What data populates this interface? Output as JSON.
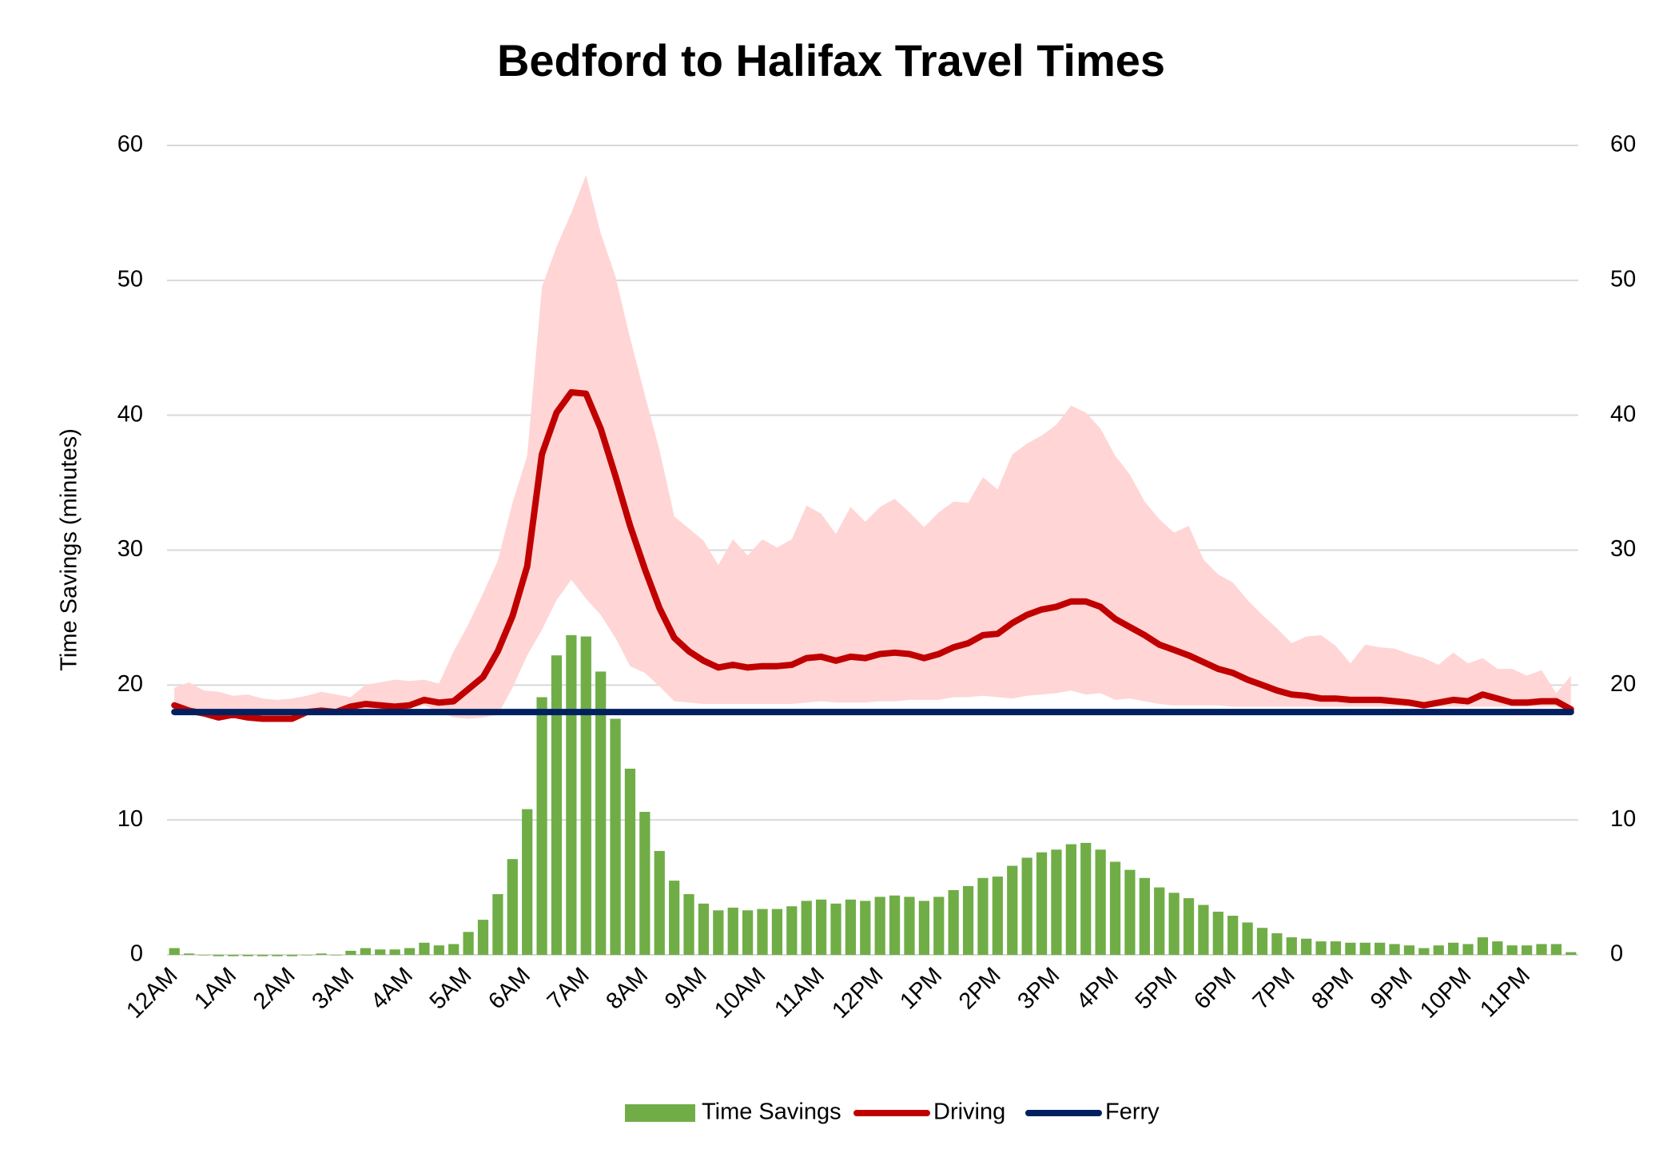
{
  "chart_data": {
    "type": "combo",
    "title": "Bedford to Halifax Travel Times",
    "y_label": "Time Savings (minutes)",
    "categories": [
      "12AM",
      null,
      null,
      null,
      "1AM",
      null,
      null,
      null,
      "2AM",
      null,
      null,
      null,
      "3AM",
      null,
      null,
      null,
      "4AM",
      null,
      null,
      null,
      "5AM",
      null,
      null,
      null,
      "6AM",
      null,
      null,
      null,
      "7AM",
      null,
      null,
      null,
      "8AM",
      null,
      null,
      null,
      "9AM",
      null,
      null,
      null,
      "10AM",
      null,
      null,
      null,
      "11AM",
      null,
      null,
      null,
      "12PM",
      null,
      null,
      null,
      "1PM",
      null,
      null,
      null,
      "2PM",
      null,
      null,
      null,
      "3PM",
      null,
      null,
      null,
      "4PM",
      null,
      null,
      null,
      "5PM",
      null,
      null,
      null,
      "6PM",
      null,
      null,
      null,
      "7PM",
      null,
      null,
      null,
      "8PM",
      null,
      null,
      null,
      "9PM",
      null,
      null,
      null,
      "10PM",
      null,
      null,
      null,
      "11PM",
      null,
      null,
      null
    ],
    "series": [
      {
        "name": "Time Savings",
        "type": "bar",
        "color": "#70ad47",
        "values": [
          0.5,
          0.1,
          0,
          -0.1,
          -0.1,
          -0.1,
          -0.1,
          -0.1,
          -0.1,
          0,
          0.1,
          0,
          0.3,
          0.5,
          0.4,
          0.4,
          0.5,
          0.9,
          0.7,
          0.8,
          1.7,
          2.6,
          4.5,
          7.1,
          10.8,
          19.1,
          22.2,
          23.7,
          23.6,
          21.0,
          17.5,
          13.8,
          10.6,
          7.7,
          5.5,
          4.5,
          3.8,
          3.3,
          3.5,
          3.3,
          3.4,
          3.4,
          3.6,
          4.0,
          4.1,
          3.8,
          4.1,
          4.0,
          4.3,
          4.4,
          4.3,
          4.0,
          4.3,
          4.8,
          5.1,
          5.7,
          5.8,
          6.6,
          7.2,
          7.6,
          7.8,
          8.2,
          8.3,
          7.8,
          6.9,
          6.3,
          5.7,
          5.0,
          4.6,
          4.2,
          3.7,
          3.2,
          2.9,
          2.4,
          2.0,
          1.6,
          1.3,
          1.2,
          1.0,
          1.0,
          0.9,
          0.9,
          0.9,
          0.8,
          0.7,
          0.5,
          0.7,
          0.9,
          0.8,
          1.3,
          1.0,
          0.7,
          0.7,
          0.8,
          0.8,
          0.2
        ]
      },
      {
        "name": "Driving",
        "type": "line",
        "color": "#c00000",
        "values": [
          18.5,
          18.1,
          17.9,
          17.6,
          17.8,
          17.6,
          17.5,
          17.5,
          17.5,
          18.0,
          18.1,
          18.0,
          18.4,
          18.6,
          18.5,
          18.4,
          18.5,
          18.9,
          18.7,
          18.8,
          19.7,
          20.6,
          22.5,
          25.1,
          28.8,
          37.1,
          40.2,
          41.7,
          41.6,
          39.0,
          35.5,
          31.8,
          28.6,
          25.7,
          23.5,
          22.5,
          21.8,
          21.3,
          21.5,
          21.3,
          21.4,
          21.4,
          21.5,
          22.0,
          22.1,
          21.8,
          22.1,
          22.0,
          22.3,
          22.4,
          22.3,
          22.0,
          22.3,
          22.8,
          23.1,
          23.7,
          23.8,
          24.6,
          25.2,
          25.6,
          25.8,
          26.2,
          26.2,
          25.8,
          24.9,
          24.3,
          23.7,
          23.0,
          22.6,
          22.2,
          21.7,
          21.2,
          20.9,
          20.4,
          20.0,
          19.6,
          19.3,
          19.2,
          19.0,
          19.0,
          18.9,
          18.9,
          18.9,
          18.8,
          18.7,
          18.5,
          18.7,
          18.9,
          18.8,
          19.3,
          19.0,
          18.7,
          18.7,
          18.8,
          18.8,
          18.2
        ]
      },
      {
        "name": "Ferry",
        "type": "line",
        "color": "#002060",
        "values": [
          18,
          18,
          18,
          18,
          18,
          18,
          18,
          18,
          18,
          18,
          18,
          18,
          18,
          18,
          18,
          18,
          18,
          18,
          18,
          18,
          18,
          18,
          18,
          18,
          18,
          18,
          18,
          18,
          18,
          18,
          18,
          18,
          18,
          18,
          18,
          18,
          18,
          18,
          18,
          18,
          18,
          18,
          18,
          18,
          18,
          18,
          18,
          18,
          18,
          18,
          18,
          18,
          18,
          18,
          18,
          18,
          18,
          18,
          18,
          18,
          18,
          18,
          18,
          18,
          18,
          18,
          18,
          18,
          18,
          18,
          18,
          18,
          18,
          18,
          18,
          18,
          18,
          18,
          18,
          18,
          18,
          18,
          18,
          18,
          18,
          18,
          18,
          18,
          18,
          18,
          18,
          18,
          18,
          18,
          18,
          18
        ]
      }
    ],
    "band": {
      "color": "#ffd5d5",
      "upper": [
        19.8,
        20.2,
        19.6,
        19.5,
        19.2,
        19.3,
        19.0,
        18.9,
        19.0,
        19.2,
        19.5,
        19.3,
        19.1,
        20.0,
        20.2,
        20.4,
        20.3,
        20.4,
        20.1,
        22.5,
        24.5,
        26.8,
        29.2,
        33.5,
        37.0,
        49.5,
        52.5,
        55.0,
        57.8,
        53.5,
        50.3,
        45.7,
        41.5,
        37.4,
        32.5,
        31.6,
        30.7,
        28.9,
        30.8,
        29.6,
        30.8,
        30.2,
        30.8,
        33.3,
        32.7,
        31.2,
        33.2,
        32.1,
        33.2,
        33.8,
        32.8,
        31.7,
        32.8,
        33.6,
        33.5,
        35.4,
        34.5,
        37.1,
        37.9,
        38.5,
        39.3,
        40.7,
        40.2,
        39.0,
        37.0,
        35.6,
        33.6,
        32.3,
        31.3,
        31.8,
        29.3,
        28.2,
        27.6,
        26.3,
        25.2,
        24.2,
        23.1,
        23.6,
        23.7,
        22.9,
        21.6,
        23.0,
        22.8,
        22.7,
        22.3,
        22.0,
        21.5,
        22.4,
        21.6,
        22.0,
        21.2,
        21.2,
        20.7,
        21.1,
        19.4,
        20.7
      ],
      "lower": [
        18.2,
        18.0,
        17.8,
        17.6,
        17.7,
        17.6,
        17.5,
        17.5,
        17.5,
        17.9,
        18.0,
        18.0,
        18.1,
        18.2,
        18.2,
        18.2,
        18.3,
        18.5,
        18.0,
        17.6,
        17.5,
        17.6,
        17.8,
        19.8,
        22.2,
        24.1,
        26.3,
        27.8,
        26.4,
        25.2,
        23.5,
        21.4,
        20.9,
        19.9,
        18.8,
        18.7,
        18.6,
        18.6,
        18.6,
        18.6,
        18.6,
        18.6,
        18.6,
        18.7,
        18.8,
        18.7,
        18.7,
        18.7,
        18.8,
        18.8,
        18.9,
        18.9,
        18.9,
        19.1,
        19.1,
        19.2,
        19.1,
        19.0,
        19.2,
        19.3,
        19.4,
        19.6,
        19.3,
        19.4,
        18.9,
        19.0,
        18.8,
        18.6,
        18.5,
        18.5,
        18.5,
        18.5,
        18.4,
        18.4,
        18.4,
        18.4,
        18.4,
        18.4,
        18.4,
        18.4,
        18.4,
        18.4,
        18.4,
        18.4,
        18.4,
        18.4,
        18.4,
        18.4,
        18.4,
        18.4,
        18.4,
        18.4,
        18.4,
        18.4,
        18.4,
        18.1
      ]
    },
    "ylim": [
      0,
      60
    ],
    "yticks": [
      0,
      10,
      20,
      30,
      40,
      50,
      60
    ],
    "y2lim": [
      0,
      60
    ],
    "y2ticks": [
      0,
      10,
      20,
      30,
      40,
      50,
      60
    ],
    "grid": true,
    "legend": "bottom"
  }
}
